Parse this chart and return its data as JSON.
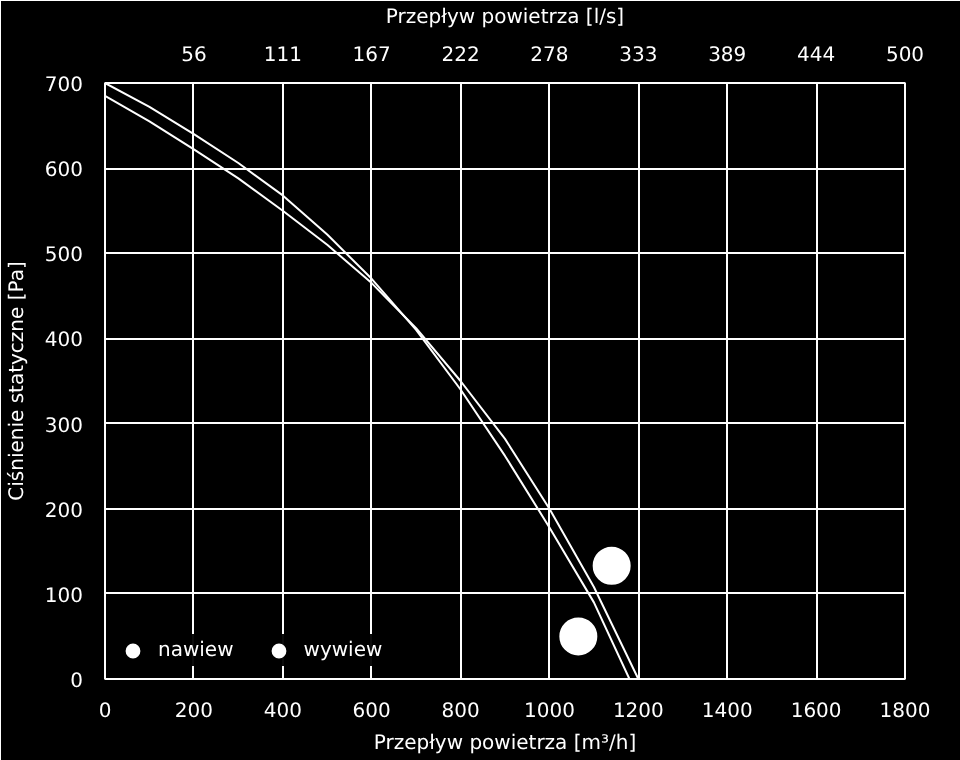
{
  "chart_data": {
    "type": "line",
    "xlabel": "Przepływ powietrza [m³/h]",
    "ylabel": "Ciśnienie statyczne [Pa]",
    "x2label": "Przepływ powietrza [l/s]",
    "xlim": [
      0,
      1800
    ],
    "xticks": [
      0,
      200,
      400,
      600,
      800,
      1000,
      1200,
      1400,
      1600,
      1800
    ],
    "x2lim": [
      0,
      500
    ],
    "x2ticks": [
      {
        "value": 55.56,
        "label": "56"
      },
      {
        "value": 111.11,
        "label": "111"
      },
      {
        "value": 166.67,
        "label": "167"
      },
      {
        "value": 222.22,
        "label": "222"
      },
      {
        "value": 277.78,
        "label": "278"
      },
      {
        "value": 333.33,
        "label": "333"
      },
      {
        "value": 388.89,
        "label": "389"
      },
      {
        "value": 444.44,
        "label": "444"
      },
      {
        "value": 500,
        "label": "500"
      }
    ],
    "ylim": [
      0,
      700
    ],
    "yticks": [
      0,
      100,
      200,
      300,
      400,
      500,
      600,
      700
    ],
    "grid": true,
    "legend": "bottom left",
    "marker": "none",
    "line_style": "solid",
    "series": [
      {
        "color": "#ffffff",
        "x": [
          0,
          100,
          200,
          300,
          400,
          500,
          600,
          700,
          800,
          900,
          1000,
          1100,
          1180
        ],
        "values": [
          700,
          672,
          640,
          606,
          568,
          522,
          470,
          410,
          340,
          262,
          178,
          90,
          0
        ]
      },
      {
        "color": "#ffffff",
        "x": [
          0,
          100,
          200,
          300,
          400,
          500,
          600,
          700,
          800,
          900,
          1000,
          1100,
          1200
        ],
        "values": [
          685,
          655,
          622,
          588,
          550,
          510,
          465,
          412,
          350,
          282,
          200,
          108,
          0
        ]
      },
      {
        "type": "scatter",
        "name": "nawiew",
        "color": "#ffffff",
        "marker": "circle",
        "x": [
          1065
        ],
        "values": [
          50
        ]
      },
      {
        "type": "scatter",
        "name": "wywiew",
        "color": "#ffffff",
        "marker": "circle",
        "x": [
          1140
        ],
        "values": [
          133
        ]
      }
    ]
  }
}
